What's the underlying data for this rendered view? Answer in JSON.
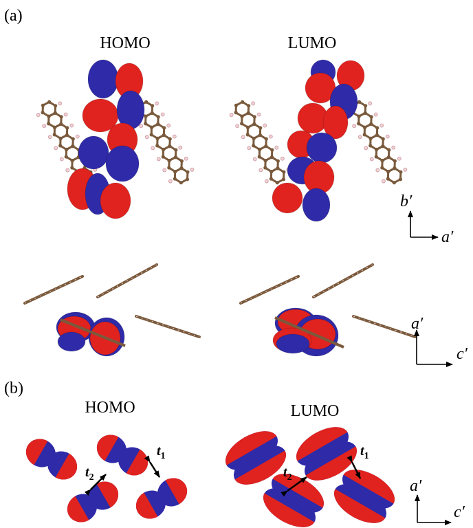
{
  "panel_a": {
    "label": "(a)",
    "homo_title": "HOMO",
    "lumo_title": "LUMO",
    "top_axes": {
      "vertical": "b′",
      "horizontal": "a′"
    },
    "side_axes": {
      "vertical": "a′",
      "horizontal": "c′"
    }
  },
  "panel_b": {
    "label": "(b)",
    "homo": {
      "title": "HOMO",
      "t2": {
        "symbol": "t",
        "subscript": "2"
      },
      "t1": {
        "symbol": "t",
        "subscript": "1"
      }
    },
    "lumo": {
      "title": "LUMO",
      "t2": {
        "symbol": "t",
        "subscript": "2"
      },
      "t1": {
        "symbol": "t",
        "subscript": "1"
      }
    },
    "axes": {
      "vertical": "a′",
      "horizontal": "c′"
    }
  }
}
